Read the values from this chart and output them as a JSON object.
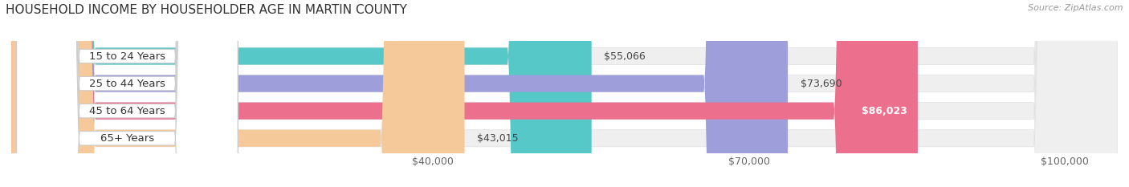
{
  "title": "HOUSEHOLD INCOME BY HOUSEHOLDER AGE IN MARTIN COUNTY",
  "source": "Source: ZipAtlas.com",
  "categories": [
    "15 to 24 Years",
    "25 to 44 Years",
    "45 to 64 Years",
    "65+ Years"
  ],
  "values": [
    55066,
    73690,
    86023,
    43015
  ],
  "bar_colors": [
    "#56C8C8",
    "#9E9EDA",
    "#EC6F8E",
    "#F5C99A"
  ],
  "bar_bg_color": "#EFEFEF",
  "bar_bg_border": "#E0E0E0",
  "xmin": 0,
  "xmax": 105000,
  "xticks": [
    40000,
    70000,
    100000
  ],
  "xtick_labels": [
    "$40,000",
    "$70,000",
    "$100,000"
  ],
  "value_labels": [
    "$55,066",
    "$73,690",
    "$86,023",
    "$43,015"
  ],
  "label_inside_bar": [
    false,
    false,
    true,
    false
  ],
  "title_fontsize": 11,
  "source_fontsize": 8,
  "tick_fontsize": 9,
  "bar_label_fontsize": 9,
  "cat_label_fontsize": 9.5,
  "figsize": [
    14.06,
    2.33
  ],
  "dpi": 100
}
